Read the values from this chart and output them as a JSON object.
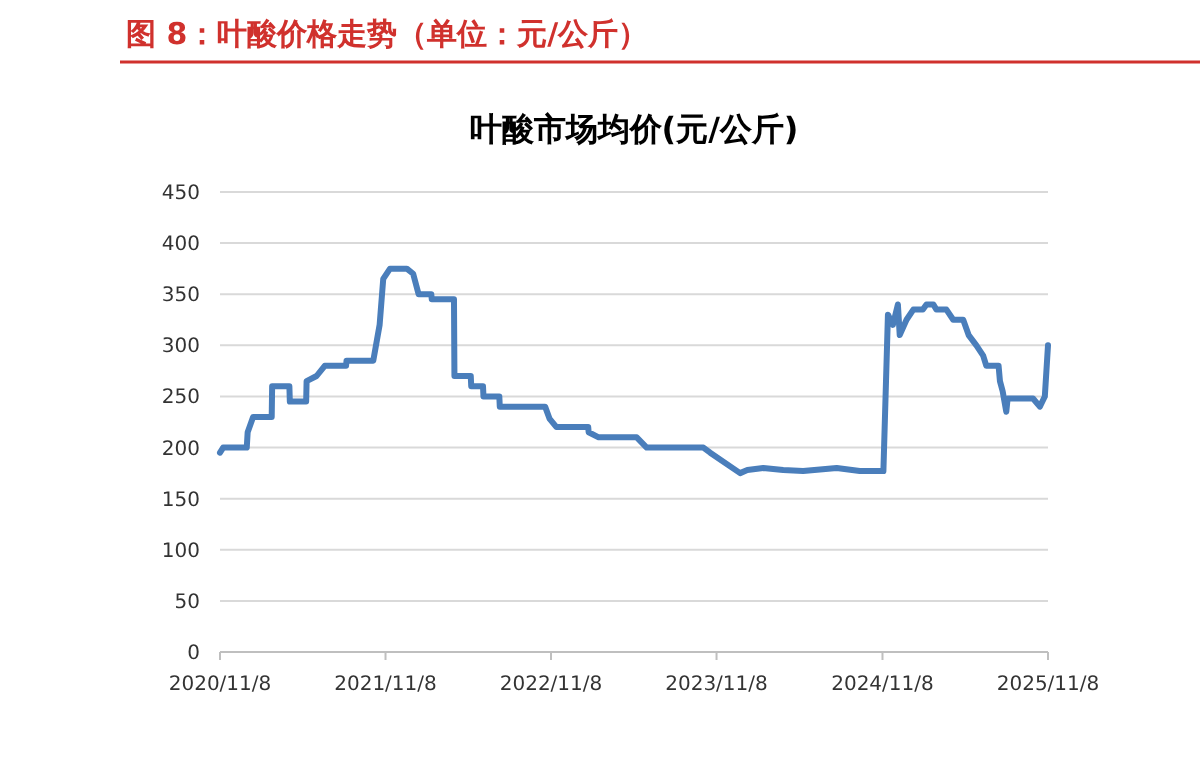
{
  "chart_data": {
    "type": "line",
    "title": "图 8：叶酸价格走势（单位：元/公斤）",
    "subtitle": "叶酸市场均价(元/公斤)",
    "x": [
      "2020-11-08",
      "2020-11-15",
      "2021-01-06",
      "2021-01-08",
      "2021-01-20",
      "2021-03-02",
      "2021-03-03",
      "2021-04-10",
      "2021-04-11",
      "2021-05-17",
      "2021-05-18",
      "2021-06-09",
      "2021-06-27",
      "2021-08-13",
      "2021-08-14",
      "2021-10-12",
      "2021-10-26",
      "2021-11-03",
      "2021-11-18",
      "2021-12-25",
      "2022-01-08",
      "2022-01-20",
      "2022-02-17",
      "2022-02-18",
      "2022-04-08",
      "2022-04-09",
      "2022-05-15",
      "2022-05-16",
      "2022-06-11",
      "2022-06-12",
      "2022-07-17",
      "2022-07-18",
      "2022-10-26",
      "2022-11-05",
      "2022-11-20",
      "2023-01-29",
      "2023-01-30",
      "2023-02-21",
      "2023-05-16",
      "2023-06-07",
      "2023-10-10",
      "2023-10-25",
      "2023-12-30",
      "2024-01-15",
      "2024-02-19",
      "2024-04-03",
      "2024-05-17",
      "2024-07-30",
      "2024-09-19",
      "2024-11-10",
      "2024-11-20",
      "2024-12-01",
      "2024-12-12",
      "2024-12-16",
      "2024-12-31",
      "2025-01-15",
      "2025-02-05",
      "2025-02-13",
      "2025-02-28",
      "2025-03-07",
      "2025-03-29",
      "2025-04-13",
      "2025-05-05",
      "2025-05-17",
      "2025-06-03",
      "2025-06-18",
      "2025-06-25",
      "2025-07-22",
      "2025-07-25",
      "2025-07-31",
      "2025-08-08",
      "2025-08-11",
      "2025-10-06",
      "2025-10-21",
      "2025-11-01",
      "2025-11-08"
    ],
    "series": [
      {
        "color": "#4a7ebb",
        "values": [
          195,
          200,
          200,
          215,
          230,
          230,
          260,
          260,
          245,
          245,
          265,
          270,
          280,
          280,
          285,
          285,
          320,
          365,
          375,
          375,
          370,
          350,
          350,
          345,
          345,
          270,
          270,
          260,
          260,
          250,
          250,
          240,
          240,
          228,
          220,
          220,
          215,
          210,
          210,
          200,
          200,
          195,
          175,
          178,
          180,
          178,
          177,
          180,
          177,
          177,
          330,
          320,
          340,
          310,
          325,
          335,
          335,
          340,
          340,
          335,
          335,
          325,
          325,
          310,
          300,
          290,
          280,
          280,
          265,
          255,
          235,
          248,
          248,
          240,
          250,
          300
        ]
      }
    ],
    "xlim": [
      "2020-11-08",
      "2025-11-08"
    ],
    "xticks": [
      {
        "value": "2020-11-08",
        "label": "2020/11/8"
      },
      {
        "value": "2021-11-08",
        "label": "2021/11/8"
      },
      {
        "value": "2022-11-08",
        "label": "2022/11/8"
      },
      {
        "value": "2023-11-08",
        "label": "2023/11/8"
      },
      {
        "value": "2024-11-08",
        "label": "2024/11/8"
      },
      {
        "value": "2025-11-08",
        "label": "2025/11/8"
      }
    ],
    "ylim": [
      0,
      450
    ],
    "yticks": [
      0,
      50,
      100,
      150,
      200,
      250,
      300,
      350,
      400,
      450
    ],
    "grid": "y",
    "marker": "none",
    "line_style": "solid"
  }
}
